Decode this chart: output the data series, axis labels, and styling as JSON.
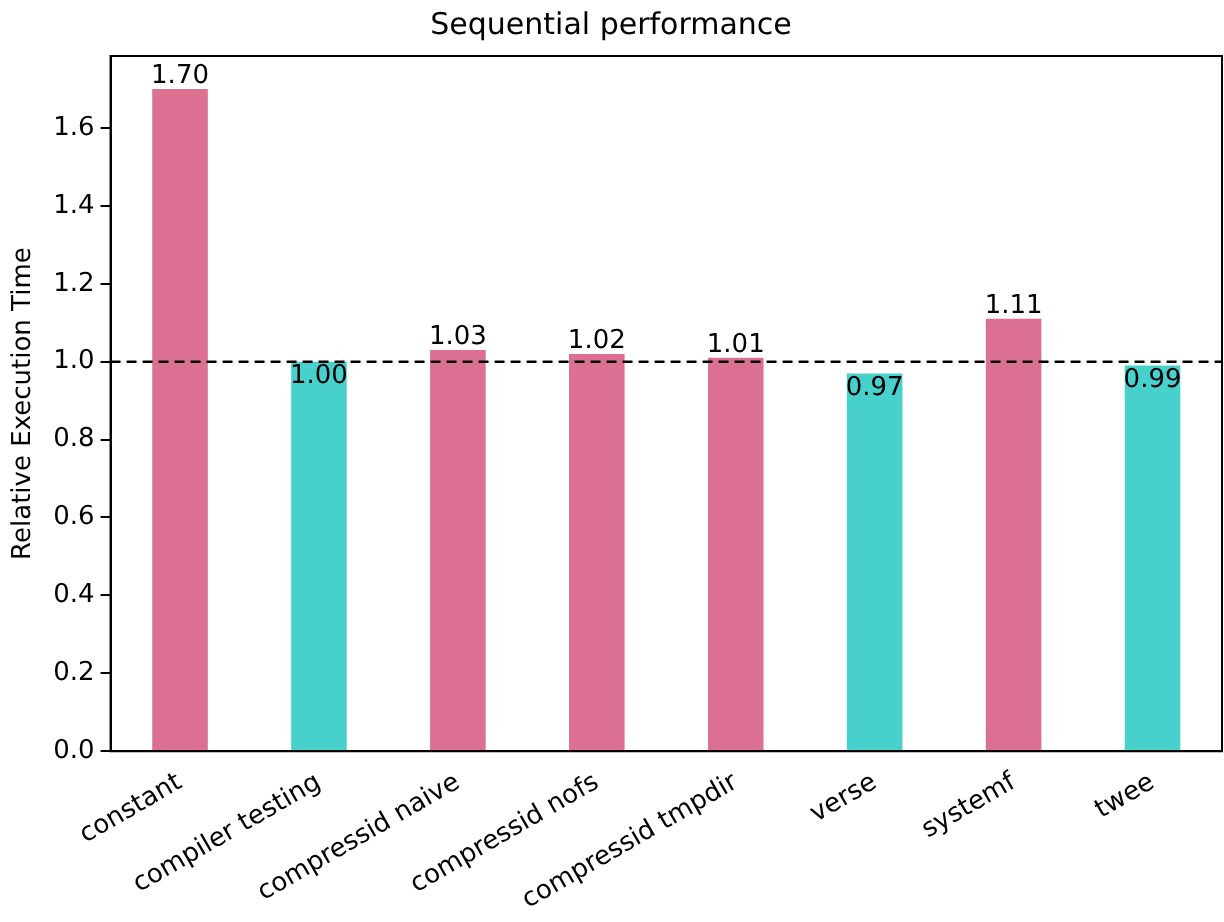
{
  "chart_data": {
    "type": "bar",
    "title": "Sequential performance",
    "ylabel": "Relative Execution Time",
    "categories": [
      "constant",
      "compiler testing",
      "compressid naive",
      "compressid nofs",
      "compressid tmpdir",
      "verse",
      "systemf",
      "twee"
    ],
    "values": [
      1.7,
      1.0,
      1.03,
      1.02,
      1.01,
      0.97,
      1.11,
      0.99
    ],
    "colors": [
      "#db7093",
      "#48d1cc",
      "#db7093",
      "#db7093",
      "#db7093",
      "#48d1cc",
      "#db7093",
      "#48d1cc"
    ],
    "value_labels": [
      "1.70",
      "1.00",
      "1.03",
      "1.02",
      "1.01",
      "0.97",
      "1.11",
      "0.99"
    ],
    "ylim": [
      0,
      1.785
    ],
    "yticks": [
      {
        "value": 0,
        "label": "0.0"
      },
      0.2,
      0.4,
      0.6,
      0.8,
      {
        "value": 1,
        "label": "1.0"
      },
      1.2,
      1.4,
      1.6
    ],
    "ref_lines": [
      {
        "axis": "y",
        "value": 1.0,
        "color": "#000000",
        "line_style": "dashed"
      }
    ],
    "grid": false,
    "legend": false
  }
}
